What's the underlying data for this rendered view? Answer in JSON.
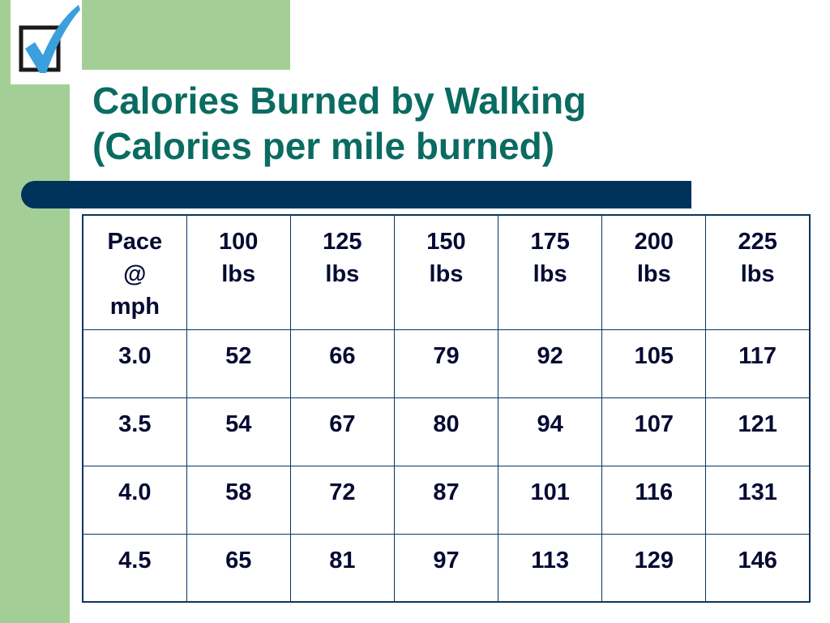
{
  "slide": {
    "title_line1": "Calories Burned by Walking",
    "title_line2": "(Calories per mile burned)"
  },
  "colors": {
    "title": "#0a6b61",
    "accent_green": "#a3cf97",
    "rule_bar": "#00335c",
    "table_border": "#0b3560",
    "checkmark": "#3a9fdd"
  },
  "icons": {
    "logo": "checkmark-checkbox-icon"
  },
  "table": {
    "headers": [
      [
        "Pace",
        "@",
        "mph"
      ],
      [
        "100",
        "lbs"
      ],
      [
        "125",
        "lbs"
      ],
      [
        "150",
        "lbs"
      ],
      [
        "175",
        "lbs"
      ],
      [
        "200",
        "lbs"
      ],
      [
        "225",
        "lbs"
      ]
    ],
    "rows": [
      [
        "3.0",
        "52",
        "66",
        "79",
        "92",
        "105",
        "117"
      ],
      [
        "3.5",
        "54",
        "67",
        "80",
        "94",
        "107",
        "121"
      ],
      [
        "4.0",
        "58",
        "72",
        "87",
        "101",
        "116",
        "131"
      ],
      [
        "4.5",
        "65",
        "81",
        "97",
        "113",
        "129",
        "146"
      ]
    ]
  }
}
